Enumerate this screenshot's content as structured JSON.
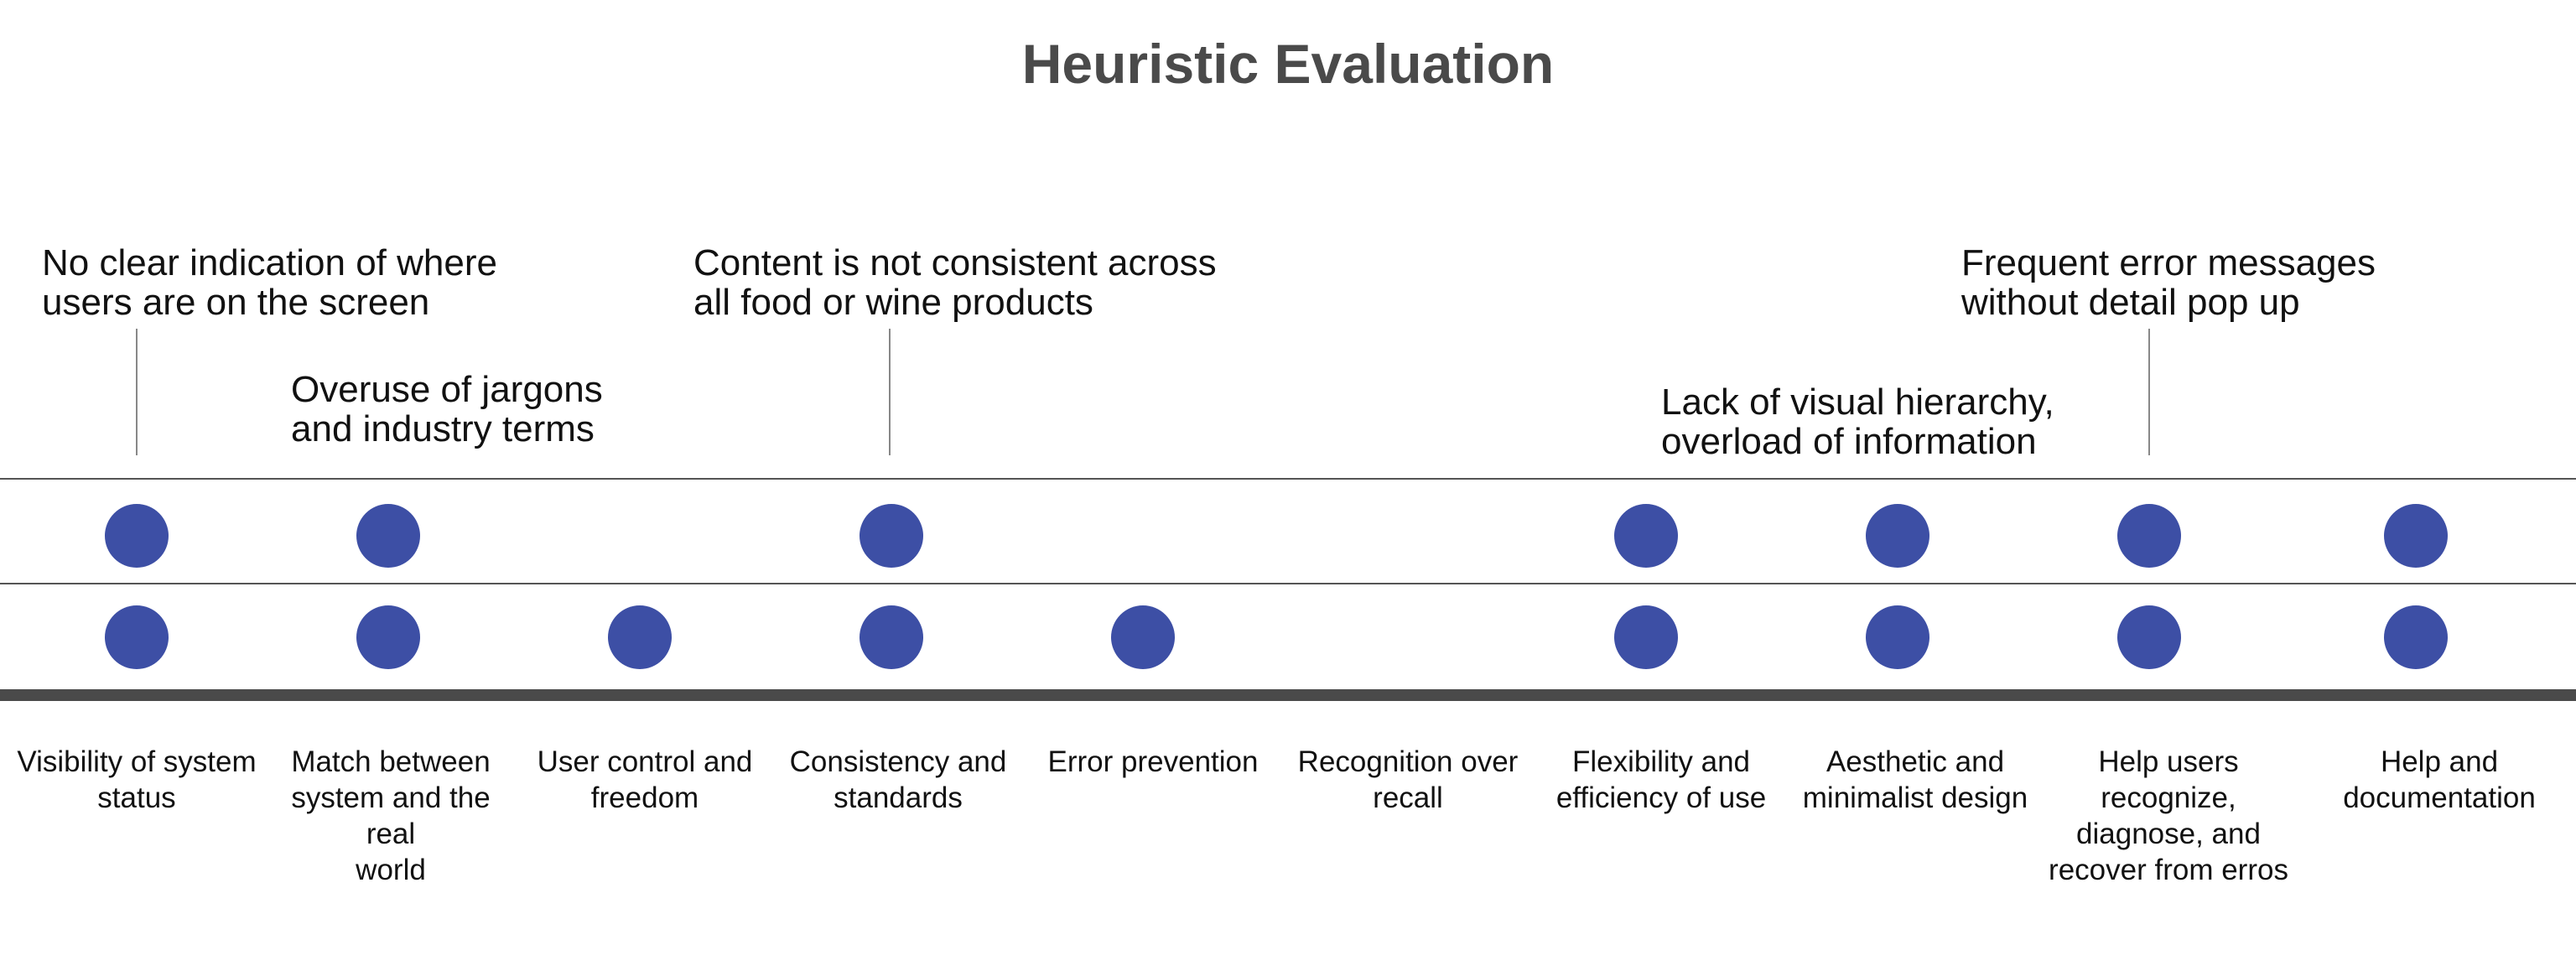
{
  "title": "Heuristic Evaluation",
  "colors": {
    "dot": "#3d4fa5",
    "title": "#4a4a4a",
    "axis": "#4a4a4a",
    "line": "#555555",
    "connector": "#888888"
  },
  "categories": [
    "Visibility of system status",
    "Match between system and the real world",
    "User control and freedom",
    "Consistency and standards",
    "Error prevention",
    "Recognition over recall",
    "Flexibility and efficiency of use",
    "Aesthetic and minimalist design",
    "Help users recognize, diagnose, and recover from erros",
    "Help and documentation"
  ],
  "row_top_marked": [
    true,
    true,
    false,
    true,
    false,
    false,
    true,
    true,
    true,
    true
  ],
  "row_bottom_marked": [
    true,
    true,
    true,
    true,
    true,
    false,
    true,
    true,
    true,
    true
  ],
  "annotations": [
    {
      "text": "No clear indication of where\nusers are on the screen",
      "category_index": 0
    },
    {
      "text": "Overuse of jargons\nand industry terms",
      "category_index": 1
    },
    {
      "text": "Content is not consistent across\nall food or wine products",
      "category_index": 3
    },
    {
      "text": "Lack of visual hierarchy,\noverload of information",
      "category_index": 6
    },
    {
      "text": "Frequent error messages\nwithout detail pop up",
      "category_index": 8
    }
  ]
}
